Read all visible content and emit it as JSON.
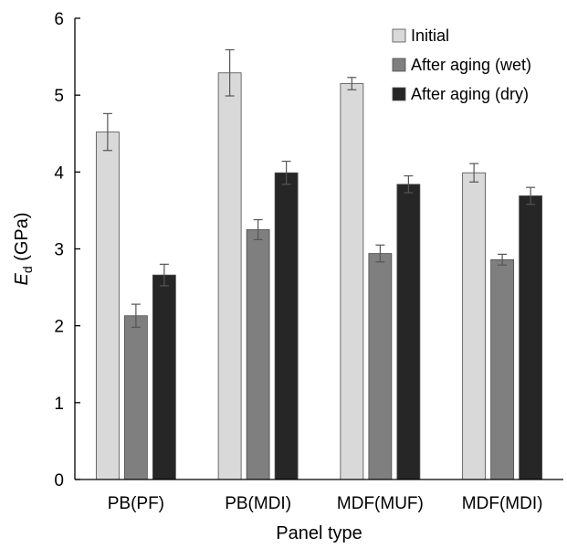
{
  "chart_data": {
    "type": "bar",
    "categories": [
      "PB(PF)",
      "PB(MDI)",
      "MDF(MUF)",
      "MDF(MDI)"
    ],
    "series": [
      {
        "name": "Initial",
        "color": "#d9d9d9",
        "values": [
          4.52,
          5.29,
          5.15,
          3.99
        ],
        "errors": [
          0.24,
          0.3,
          0.08,
          0.12
        ]
      },
      {
        "name": "After aging (wet)",
        "color": "#7f7f7f",
        "values": [
          2.13,
          3.25,
          2.94,
          2.86
        ],
        "errors": [
          0.15,
          0.13,
          0.11,
          0.07
        ]
      },
      {
        "name": "After aging (dry)",
        "color": "#262626",
        "values": [
          2.66,
          3.99,
          3.84,
          3.69
        ],
        "errors": [
          0.14,
          0.15,
          0.11,
          0.11
        ]
      }
    ],
    "xlabel": "Panel type",
    "ylabel_main": "E",
    "ylabel_sub": "d",
    "ylabel_unit": " (GPa)",
    "ylim": [
      0,
      6
    ],
    "yticks": [
      "0",
      "1",
      "2",
      "3",
      "4",
      "5",
      "6"
    ],
    "grid": false,
    "legend_position": "top-right"
  }
}
